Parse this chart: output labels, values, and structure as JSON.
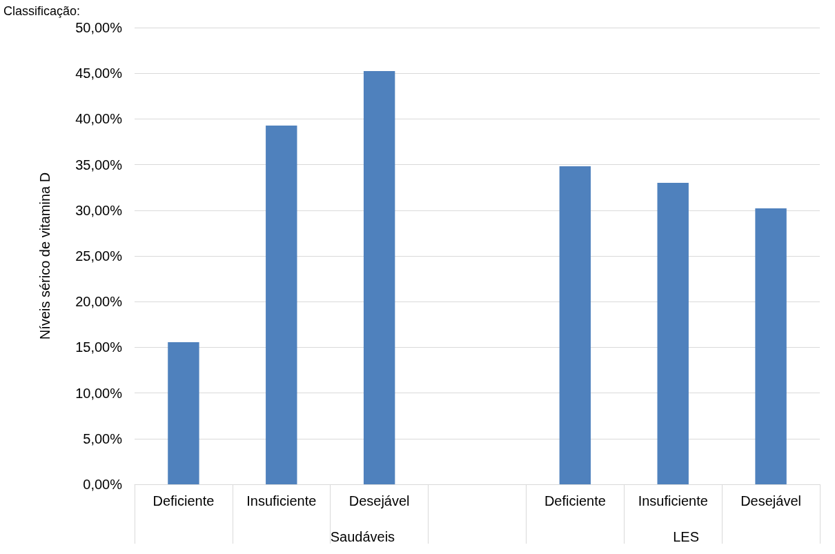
{
  "chart_data": {
    "type": "bar",
    "title": "Classificação:",
    "ylabel": "Níveis sérico de vitamina D",
    "categories": [
      "Deficiente",
      "Insuficiente",
      "Desejável",
      null,
      "Deficiente",
      "Insuficiente",
      "Desejável"
    ],
    "values": [
      15.56,
      39.27,
      45.24,
      null,
      34.82,
      33.0,
      30.21
    ],
    "color": "#4f81bd",
    "annotations": [
      "Saudáveis",
      "LES"
    ],
    "ylim": [
      0,
      50
    ],
    "yticks": [
      {
        "value": 0,
        "label": "0,00%"
      },
      {
        "value": 5,
        "label": "5,00%"
      },
      {
        "value": 10,
        "label": "10,00%"
      },
      {
        "value": 15,
        "label": "15,00%"
      },
      {
        "value": 20,
        "label": "20,00%"
      },
      {
        "value": 25,
        "label": "25,00%"
      },
      {
        "value": 30,
        "label": "30,00%"
      },
      {
        "value": 35,
        "label": "35,00%"
      },
      {
        "value": 40,
        "label": "40,00%"
      },
      {
        "value": 45,
        "label": "45,00%"
      },
      {
        "value": 50,
        "label": "50,00%"
      }
    ],
    "grid": "y"
  }
}
